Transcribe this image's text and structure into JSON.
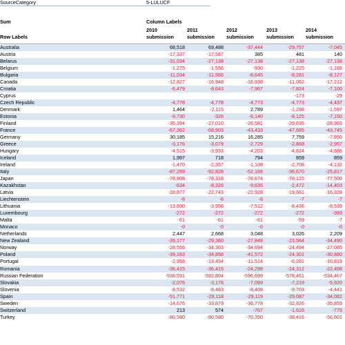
{
  "filter": {
    "label": "SourceCategory",
    "value": "5-LULUCF"
  },
  "header": {
    "measure": "Sum",
    "column_labels": "Column Labels",
    "row_labels": "Row Labels",
    "years": [
      {
        "year": "2010",
        "sub": "submission"
      },
      {
        "year": "2011",
        "sub": "submission"
      },
      {
        "year": "2012",
        "sub": "submission"
      },
      {
        "year": "2013",
        "sub": "submission"
      },
      {
        "year": "2014",
        "sub": "submission"
      }
    ]
  },
  "rows": [
    {
      "label": "Australia",
      "values": [
        "68,518",
        "69,488",
        "-37,444",
        "-29,757",
        "-7,045"
      ]
    },
    {
      "label": "Austria",
      "values": [
        "-17,337",
        "-17,587",
        "385",
        "481",
        "140"
      ]
    },
    {
      "label": "Belarus",
      "values": [
        "-31,034",
        "-27,138",
        "-27,138",
        "-27,138",
        "-27,138"
      ]
    },
    {
      "label": "Belgium",
      "values": [
        "-1,275",
        "-1,556",
        "-930",
        "-1,225",
        "-1,166"
      ]
    },
    {
      "label": "Bulgaria",
      "values": [
        "-11,034",
        "-11,566",
        "-8,645",
        "-8,281",
        "-8,127"
      ]
    },
    {
      "label": "Canada",
      "values": [
        "-12,827",
        "-16,948",
        "-16,938",
        "-11,062",
        "-17,212"
      ]
    },
    {
      "label": "Croatia",
      "values": [
        "-6,479",
        "-8,643",
        "-7,967",
        "-7,824",
        "-7,100"
      ]
    },
    {
      "label": "Cyprus",
      "values": [
        "",
        "",
        "",
        "-173",
        "-29"
      ]
    },
    {
      "label": "Czech Republic",
      "values": [
        "-4,778",
        "-4,778",
        "-4,773",
        "-4,773",
        "-4,437"
      ]
    },
    {
      "label": "Denmark",
      "values": [
        "1,464",
        "-2,115",
        "2,789",
        "-1,298",
        "-1,597"
      ]
    },
    {
      "label": "Estonia",
      "values": [
        "-9,730",
        "-326",
        "-6,140",
        "-8,125",
        "-7,150"
      ]
    },
    {
      "label": "Finland",
      "values": [
        "-35,394",
        "-27,010",
        "-26,581",
        "-29,635",
        "-28,965"
      ]
    },
    {
      "label": "France",
      "values": [
        "-67,362",
        "-68,903",
        "-43,433",
        "-47,685",
        "-43,745"
      ]
    },
    {
      "label": "Germany",
      "values": [
        "30,185",
        "15,216",
        "16,285",
        "7,759",
        "-7,850"
      ]
    },
    {
      "label": "Greece",
      "values": [
        "-3,176",
        "-3,079",
        "-2,729",
        "-2,868",
        "-2,957"
      ]
    },
    {
      "label": "Hungary",
      "values": [
        "-4,515",
        "-3,933",
        "-4,203",
        "-4,824",
        "-4,686"
      ]
    },
    {
      "label": "Iceland",
      "values": [
        "1,997",
        "718",
        "794",
        "859",
        "859"
      ]
    },
    {
      "label": "Ireland",
      "values": [
        "-1,470",
        "-2,357",
        "-1,108",
        "-2,708",
        "-4,132"
      ]
    },
    {
      "label": "Italy",
      "values": [
        "-87,299",
        "-92,828",
        "-52,168",
        "-36,670",
        "-25,817"
      ]
    },
    {
      "label": "Japan",
      "values": [
        "-78,808",
        "-78,318",
        "-78,674",
        "-78,125",
        "-77,500"
      ]
    },
    {
      "label": "Kazakhstan",
      "values": [
        "-634",
        "-8,326",
        "-9,635",
        "-2,472",
        "-14,403"
      ]
    },
    {
      "label": "Latvia",
      "values": [
        "-28,877",
        "-22,743",
        "-22,928",
        "-19,661",
        "-16,328"
      ]
    },
    {
      "label": "Liechtenstein",
      "values": [
        "-6",
        "-6",
        "-6",
        "-7",
        "-7"
      ]
    },
    {
      "label": "Lithuania",
      "values": [
        "-13,690",
        "-3,958",
        "-7,512",
        "-8,436",
        "-8,539"
      ]
    },
    {
      "label": "Luxembourg",
      "values": [
        "-272",
        "-272",
        "-272",
        "-272",
        "-393"
      ]
    },
    {
      "label": "Malta",
      "values": [
        "-61",
        "-61",
        "-61",
        "-59",
        "-7"
      ]
    },
    {
      "label": "Monaco",
      "values": [
        "-0",
        "-0",
        "-0",
        "-0",
        "-0"
      ]
    },
    {
      "label": "Netherlands",
      "values": [
        "2,447",
        "2,668",
        "3,048",
        "3,026",
        "2,209"
      ]
    },
    {
      "label": "New Zealand",
      "values": [
        "-26,177",
        "-29,360",
        "-27,848",
        "-23,564",
        "-34,490"
      ]
    },
    {
      "label": "Norway",
      "values": [
        "-28,556",
        "-34,303",
        "-34,694",
        "-24,494",
        "-27,085"
      ]
    },
    {
      "label": "Poland",
      "values": [
        "-39,183",
        "-34,858",
        "-41,572",
        "-24,301",
        "-30,880"
      ]
    },
    {
      "label": "Portugal",
      "values": [
        "-2,958",
        "-13,454",
        "-11,514",
        "-6,261",
        "-16,819"
      ]
    },
    {
      "label": "Romania",
      "values": [
        "-36,415",
        "-36,415",
        "-24,298",
        "-24,312",
        "-22,408"
      ]
    },
    {
      "label": "Russian Federation",
      "values": [
        "-538,591",
        "-592,804",
        "-596,699",
        "-578,461",
        "-534,467"
      ]
    },
    {
      "label": "Slovakia",
      "values": [
        "-2,076",
        "-3,176",
        "-7,099",
        "-7,219",
        "-5,920"
      ]
    },
    {
      "label": "Slovenia",
      "values": [
        "-8,532",
        "-8,483",
        "-8,408",
        "-9,703",
        "-4,441"
      ]
    },
    {
      "label": "Spain",
      "values": [
        "-51,771",
        "-29,118",
        "-29,119",
        "-29,087",
        "-34,082"
      ]
    },
    {
      "label": "Sweden",
      "values": [
        "-14,676",
        "-33,879",
        "-36,778",
        "-32,826",
        "-35,859"
      ]
    },
    {
      "label": "Switzerland",
      "values": [
        "213",
        "574",
        "-767",
        "-1,616",
        "-775"
      ]
    },
    {
      "label": "Turkey",
      "values": [
        "-80,580",
        "-80,580",
        "-70,350",
        "-38,416",
        "-56,601"
      ]
    }
  ]
}
